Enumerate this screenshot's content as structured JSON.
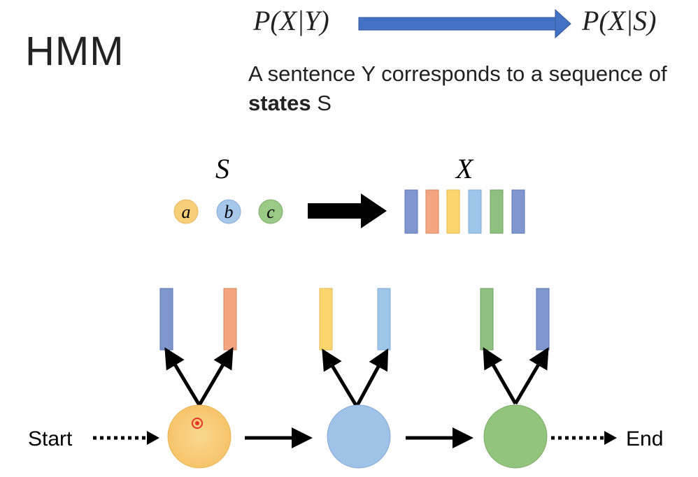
{
  "header": {
    "title": "HMM",
    "eq_left": "P(X|Y)",
    "eq_right": "P(X|S)",
    "desc_before": "A sentence Y corresponds to a sequence of ",
    "desc_bold": "states",
    "desc_after": " S"
  },
  "legend": {
    "states_symbol": "S",
    "obs_symbol": "X",
    "states": [
      "a",
      "b",
      "c"
    ]
  },
  "chain": {
    "start_label": "Start",
    "end_label": "End"
  },
  "colors": {
    "yellow": "#f7c873",
    "blue": "#9fc2e8",
    "green": "#93c47d",
    "bar_blue": "#7f96cf",
    "bar_orange": "#f4a582",
    "bar_yellow": "#fbd56e",
    "bar_lightblue": "#9fc6ea",
    "bar_green": "#8fc07f",
    "arrow_blue": "#4472c4"
  }
}
